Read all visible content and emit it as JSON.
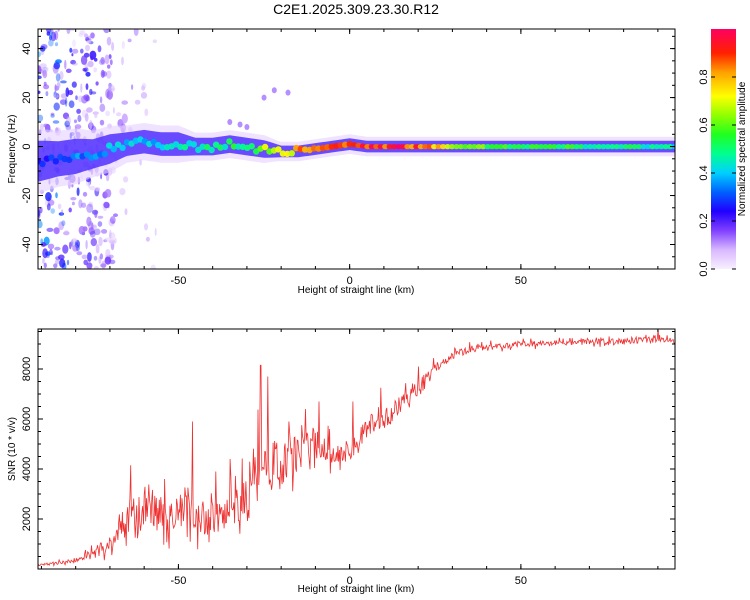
{
  "title": "C2E1.2025.309.23.30.R12",
  "chart_data": [
    {
      "type": "heatmap",
      "title": "C2E1.2025.309.23.30.R12",
      "xlabel": "Height of straight line (km)",
      "ylabel": "Frequency (Hz)",
      "xlim": [
        -91,
        95
      ],
      "ylim": [
        -50,
        48
      ],
      "xticks": [
        -50,
        0,
        50
      ],
      "yticks": [
        -40,
        -20,
        0,
        20,
        40
      ],
      "colorbar": {
        "label": "Normalized spectral amplitude",
        "ticks": [
          0.0,
          0.2,
          0.4,
          0.6,
          0.8
        ],
        "range": [
          0,
          1
        ],
        "colors": [
          "#f8f0ff",
          "#b080ff",
          "#4000ff",
          "#0000ff",
          "#00c0ff",
          "#00ff80",
          "#40ff00",
          "#c0ff00",
          "#ffff00",
          "#ff8000",
          "#ff0000",
          "#ff0050"
        ]
      },
      "ridge": {
        "x": [
          -91,
          -85,
          -80,
          -75,
          -70,
          -65,
          -60,
          -55,
          -50,
          -45,
          -40,
          -35,
          -30,
          -25,
          -20,
          -15,
          -10,
          -5,
          0,
          5,
          10,
          20,
          30,
          40,
          50,
          60,
          70,
          80,
          90,
          95
        ],
        "y": [
          -6,
          -5,
          -4,
          -3,
          -1,
          1,
          2,
          1,
          1,
          0,
          0,
          1,
          0,
          -1,
          -2,
          -2,
          -1,
          0,
          1,
          0,
          0,
          0,
          0,
          0,
          0,
          0,
          0,
          0,
          0,
          0
        ],
        "amplitude": [
          0.25,
          0.3,
          0.35,
          0.35,
          0.4,
          0.4,
          0.4,
          0.4,
          0.45,
          0.45,
          0.5,
          0.5,
          0.55,
          0.65,
          0.7,
          0.8,
          0.8,
          0.85,
          0.9,
          0.95,
          0.95,
          0.9,
          0.7,
          0.6,
          0.55,
          0.55,
          0.5,
          0.5,
          0.45,
          0.45
        ],
        "halfwidth": [
          7,
          6,
          6,
          5,
          5,
          4,
          4,
          4,
          4,
          3,
          3,
          3,
          3,
          3,
          2,
          2,
          2,
          2,
          2,
          2,
          2,
          2,
          2,
          2,
          2,
          2,
          2,
          2,
          2,
          2
        ]
      }
    },
    {
      "type": "line",
      "xlabel": "Height of straight line (km)",
      "ylabel": "SNR (10 * v/v)",
      "xlim": [
        -91,
        95
      ],
      "ylim": [
        0,
        9600
      ],
      "xticks": [
        -50,
        0,
        50
      ],
      "yticks": [
        2000,
        4000,
        6000,
        8000
      ],
      "color": "#ee3030",
      "series": [
        {
          "name": "SNR",
          "x": [
            -91,
            -85,
            -80,
            -75,
            -70,
            -65,
            -62,
            -60,
            -55,
            -50,
            -48,
            -45,
            -40,
            -35,
            -30,
            -28,
            -25,
            -22,
            -20,
            -18,
            -15,
            -10,
            -5,
            0,
            5,
            10,
            15,
            20,
            25,
            30,
            35,
            40,
            45,
            50,
            55,
            60,
            65,
            70,
            75,
            80,
            85,
            90,
            95
          ],
          "y": [
            150,
            250,
            350,
            600,
            1000,
            1800,
            2100,
            2200,
            2200,
            2100,
            2600,
            2000,
            2000,
            2100,
            2700,
            3800,
            4100,
            4200,
            3800,
            4400,
            4600,
            5000,
            4700,
            4600,
            5700,
            6000,
            6600,
            7200,
            8100,
            8500,
            8800,
            8900,
            8900,
            9000,
            9000,
            9050,
            9050,
            9100,
            9100,
            9100,
            9150,
            9150,
            9150
          ],
          "noise": [
            80,
            120,
            200,
            400,
            700,
            1200,
            1600,
            1500,
            1500,
            1400,
            1800,
            1400,
            1400,
            1500,
            2200,
            2500,
            2500,
            2200,
            2000,
            1800,
            1400,
            1200,
            900,
            800,
            900,
            800,
            700,
            600,
            450,
            350,
            300,
            250,
            230,
            220,
            220,
            220,
            220,
            220,
            220,
            220,
            220,
            220,
            220
          ],
          "spikes": [
            {
              "x": -64,
              "y": 4150
            },
            {
              "x": -54,
              "y": 3600
            },
            {
              "x": -46,
              "y": 5900
            },
            {
              "x": -39,
              "y": 3900
            },
            {
              "x": -35,
              "y": 4400
            },
            {
              "x": -26,
              "y": 8150
            },
            {
              "x": -24,
              "y": 7700
            },
            {
              "x": -13,
              "y": 6400
            },
            {
              "x": -9,
              "y": 6700
            },
            {
              "x": 1,
              "y": 6700
            },
            {
              "x": 9,
              "y": 7250
            },
            {
              "x": 20,
              "y": 8100
            },
            {
              "x": 28,
              "y": 8400
            },
            {
              "x": 90,
              "y": 9600
            }
          ]
        }
      ]
    }
  ]
}
